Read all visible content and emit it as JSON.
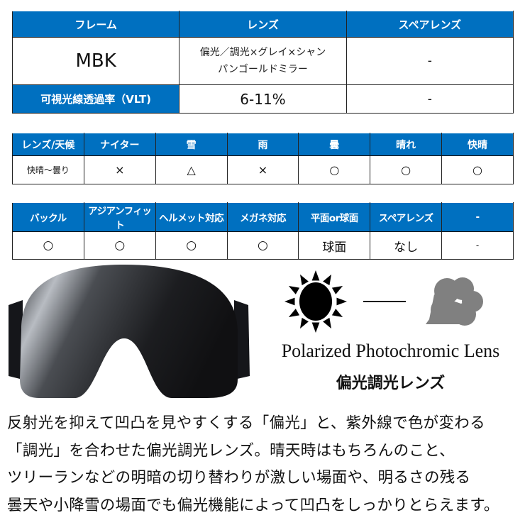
{
  "spec_table": {
    "headers": [
      "フレーム",
      "レンズ",
      "スペアレンズ"
    ],
    "frame": "MBK",
    "lens_line1": "偏光／調光×グレイ×シャン",
    "lens_line2": "パンゴールドミラー",
    "spare": "-",
    "vlt_label": "可視光線透過率（VLT)",
    "vlt_value": "6-11%",
    "vlt_spare": "-"
  },
  "weather_table": {
    "headers": [
      "レンズ/天候",
      "ナイター",
      "雪",
      "雨",
      "曇",
      "晴れ",
      "快晴"
    ],
    "row": [
      "快晴～曇り",
      "×",
      "△",
      "×",
      "○",
      "○",
      "○"
    ]
  },
  "feature_table": {
    "headers": [
      "バックル",
      "アジアンフィット",
      "ヘルメット対応",
      "メガネ対応",
      "平面or球面",
      "スペアレンズ",
      "-"
    ],
    "row": [
      "○",
      "○",
      "○",
      "○",
      "球面",
      "なし",
      "-"
    ]
  },
  "visual": {
    "caption_en": "Polarized Photochromic Lens",
    "caption_jp": "偏光調光レンズ",
    "icons": [
      "goggle-image",
      "sun-icon",
      "cloud-icon"
    ]
  },
  "description": [
    "反射光を抑えて凹凸を見やすくする「偏光」と、紫外線で色が変わる",
    "「調光」を合わせた偏光調光レンズ。晴天時はもちろんのこと、",
    "ツリーランなどの明暗の切り替わりが激しい場面や、明るさの残る",
    "曇天や小降雪の場面でも偏光機能によって凹凸をしっかりとらえます。"
  ],
  "colors": {
    "header_blue": "#0070c0",
    "cloud_gray": "#808080"
  }
}
